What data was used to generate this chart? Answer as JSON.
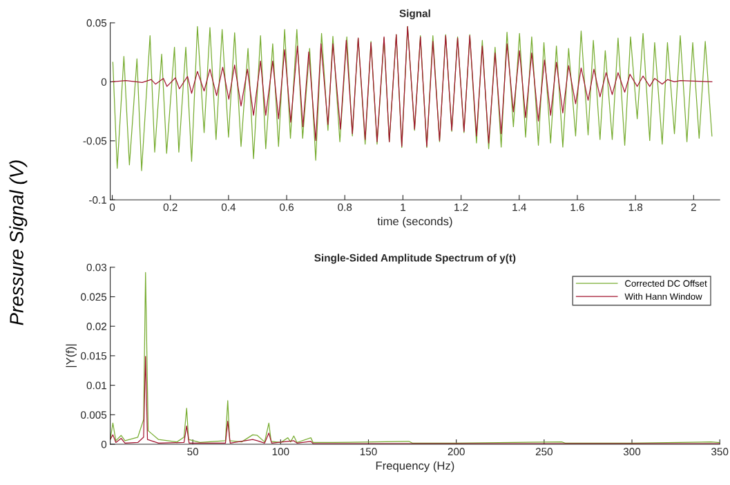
{
  "chart_data": [
    {
      "type": "line",
      "title": "Signal",
      "xlabel": "time (seconds)",
      "xlim": [
        -0.007,
        2.09
      ],
      "xticks": [
        0,
        0.2,
        0.4,
        0.6,
        0.8,
        1,
        1.2,
        1.4,
        1.6,
        1.8,
        2
      ],
      "ylim": [
        -0.1,
        0.05
      ],
      "yticks": [
        -0.1,
        -0.05,
        0,
        0.05
      ],
      "grid": false,
      "legend": false,
      "annotations": [
        "Pressure Signal (V)"
      ],
      "series": [
        {
          "color": "#77ac30",
          "x": [
            0.002,
            0.017,
            0.04,
            0.059,
            0.085,
            0.101,
            0.13,
            0.146,
            0.17,
            0.187,
            0.214,
            0.229,
            0.253,
            0.273,
            0.293,
            0.316,
            0.336,
            0.357,
            0.378,
            0.4,
            0.421,
            0.443,
            0.467,
            0.486,
            0.51,
            0.528,
            0.552,
            0.572,
            0.593,
            0.613,
            0.635,
            0.655,
            0.679,
            0.7,
            0.72,
            0.742,
            0.759,
            0.783,
            0.807,
            0.826,
            0.846,
            0.87,
            0.89,
            0.911,
            0.935,
            0.953,
            0.977,
            0.996,
            1.016,
            1.04,
            1.06,
            1.082,
            1.103,
            1.126,
            1.147,
            1.168,
            1.188,
            1.21,
            1.23,
            1.253,
            1.273,
            1.295,
            1.317,
            1.338,
            1.358,
            1.38,
            1.401,
            1.422,
            1.443,
            1.466,
            1.485,
            1.508,
            1.528,
            1.55,
            1.57,
            1.594,
            1.613,
            1.637,
            1.655,
            1.678,
            1.696,
            1.72,
            1.74,
            1.763,
            1.783,
            1.806,
            1.826,
            1.849,
            1.866,
            1.892,
            1.91,
            1.934,
            1.954,
            1.977,
            1.997,
            2.019,
            2.04,
            2.063
          ],
          "values": [
            0.0166,
            -0.0733,
            0.0215,
            -0.0704,
            0.0195,
            -0.0753,
            0.0391,
            -0.0596,
            0.0234,
            -0.0606,
            0.0293,
            -0.0596,
            0.0293,
            -0.0674,
            0.0469,
            -0.043,
            0.0459,
            -0.0489,
            0.0443,
            -0.0469,
            0.0416,
            -0.0547,
            0.0283,
            -0.0651,
            0.0391,
            -0.0567,
            0.0322,
            -0.0547,
            0.0443,
            -0.0479,
            0.0443,
            -0.0479,
            0.0283,
            -0.0665,
            0.041,
            -0.0411,
            0.0385,
            -0.0508,
            0.0381,
            -0.0459,
            0.0371,
            -0.0528,
            0.0342,
            -0.0528,
            0.0371,
            -0.0508,
            0.04,
            -0.0557,
            0.0469,
            -0.0411,
            0.0391,
            -0.0557,
            0.0391,
            -0.0508,
            0.04,
            -0.042,
            0.0381,
            -0.043,
            0.04,
            -0.0518,
            0.0351,
            -0.0567,
            0.0293,
            -0.0553,
            0.042,
            -0.0381,
            0.041,
            -0.0469,
            0.0381,
            -0.0538,
            0.0332,
            -0.0518,
            0.0303,
            -0.0553,
            0.0283,
            -0.0459,
            0.043,
            -0.045,
            0.0351,
            -0.0489,
            0.0264,
            -0.0489,
            0.0371,
            -0.0538,
            0.0381,
            -0.0313,
            0.041,
            -0.0498,
            0.0332,
            -0.0528,
            0.0332,
            -0.044,
            0.0391,
            -0.0508,
            0.0332,
            -0.0479,
            0.0342,
            -0.0459
          ]
        },
        {
          "color": "#a2142f",
          "x": [
            0.0,
            0.047,
            0.103,
            0.134,
            0.149,
            0.176,
            0.188,
            0.217,
            0.231,
            0.259,
            0.273,
            0.293,
            0.316,
            0.336,
            0.359,
            0.38,
            0.401,
            0.421,
            0.443,
            0.465,
            0.486,
            0.51,
            0.528,
            0.552,
            0.572,
            0.593,
            0.614,
            0.637,
            0.656,
            0.676,
            0.7,
            0.718,
            0.742,
            0.759,
            0.785,
            0.805,
            0.826,
            0.846,
            0.87,
            0.89,
            0.911,
            0.935,
            0.953,
            0.977,
            0.996,
            1.016,
            1.04,
            1.06,
            1.082,
            1.103,
            1.126,
            1.147,
            1.168,
            1.188,
            1.21,
            1.23,
            1.253,
            1.273,
            1.295,
            1.317,
            1.338,
            1.358,
            1.38,
            1.401,
            1.422,
            1.443,
            1.466,
            1.487,
            1.508,
            1.528,
            1.55,
            1.57,
            1.594,
            1.613,
            1.637,
            1.657,
            1.678,
            1.699,
            1.72,
            1.74,
            1.763,
            1.781,
            1.806,
            1.826,
            1.849,
            1.866,
            1.892,
            1.91,
            1.934,
            1.954,
            2.063
          ],
          "values": [
            0.0,
            0.001,
            -0.0006,
            0.0019,
            -0.002,
            0.0029,
            -0.0039,
            0.0033,
            -0.0059,
            0.0045,
            -0.0098,
            0.0088,
            -0.0078,
            0.0107,
            -0.0117,
            0.0123,
            -0.0147,
            0.0142,
            -0.0205,
            0.0107,
            -0.0284,
            0.0176,
            -0.0284,
            0.0176,
            -0.0313,
            0.0273,
            -0.0342,
            0.0303,
            -0.0381,
            0.0254,
            -0.0498,
            0.0322,
            -0.0362,
            0.0322,
            -0.0401,
            0.0351,
            -0.044,
            0.0371,
            -0.0489,
            0.0332,
            -0.0508,
            0.0381,
            -0.0508,
            0.04,
            -0.0547,
            0.0469,
            -0.0401,
            0.0381,
            -0.0547,
            0.0342,
            -0.0498,
            0.0391,
            -0.0411,
            0.0371,
            -0.042,
            0.0391,
            -0.0459,
            0.0303,
            -0.0518,
            0.0244,
            -0.044,
            0.0322,
            -0.0254,
            0.0264,
            -0.0303,
            0.0244,
            -0.0332,
            0.0185,
            -0.0284,
            0.0166,
            -0.0264,
            0.0137,
            -0.0186,
            0.0117,
            -0.0157,
            0.0107,
            -0.0127,
            0.0078,
            -0.0108,
            0.0078,
            -0.0088,
            0.0064,
            -0.0039,
            0.0049,
            -0.0039,
            0.0029,
            -0.002,
            0.0019,
            0.0,
            0.001,
            0.0
          ]
        }
      ]
    },
    {
      "type": "line",
      "title": "Single-Sided Amplitude Spectrum of y(t)",
      "xlabel": "Frequency (Hz)",
      "ylabel": "|Y(f)|",
      "xlim": [
        3,
        350
      ],
      "xticks": [
        50,
        100,
        150,
        200,
        250,
        300,
        350
      ],
      "ylim": [
        0,
        0.03
      ],
      "yticks": [
        0,
        0.005,
        0.01,
        0.015,
        0.02,
        0.025,
        0.03
      ],
      "grid": false,
      "legend": "top right",
      "series": [
        {
          "name": "Corrected DC Offset",
          "color": "#77ac30",
          "x": [
            3,
            4.5,
            6.2,
            9.2,
            11.4,
            18.7,
            22.0,
            23.1,
            24.6,
            30.5,
            41,
            45,
            46.5,
            47.6,
            54.1,
            68.6,
            69.9,
            71,
            77.8,
            84.1,
            86.7,
            90.9,
            93.3,
            94.6,
            100.1,
            104.1,
            105.7,
            107.5,
            109.3,
            117.2,
            118.5,
            130,
            173,
            175,
            200,
            260,
            262,
            300,
            345,
            350
          ],
          "values": [
            0.0008,
            0.0036,
            0.0006,
            0.0015,
            0.0006,
            0.0012,
            0.0042,
            0.0291,
            0.0023,
            0.0008,
            0.0004,
            0.0012,
            0.0061,
            0.0008,
            0.0003,
            0.0006,
            0.0074,
            0.0006,
            0.0004,
            0.0016,
            0.0015,
            0.0004,
            0.0036,
            0.0005,
            0.0003,
            0.0011,
            0.0004,
            0.0014,
            0.0003,
            0.0011,
            0.0003,
            0.0003,
            0.0005,
            0.0002,
            0.0002,
            0.0004,
            0.0002,
            0.0002,
            0.0004,
            0.0003
          ]
        },
        {
          "name": "With Hann Window",
          "color": "#a2142f",
          "x": [
            3,
            4.5,
            6.2,
            9.2,
            11.4,
            18.7,
            22.0,
            23.1,
            24.2,
            30.5,
            45,
            46.5,
            47.9,
            68.6,
            69.9,
            71.3,
            84.1,
            86.7,
            90.9,
            93.3,
            94.9,
            104.1,
            107.5,
            109.3,
            117.2,
            118.5,
            200,
            350
          ],
          "values": [
            0.0008,
            0.0016,
            0.0003,
            0.001,
            0.0002,
            0.0003,
            0.0012,
            0.0149,
            0.0008,
            0.0002,
            0.0003,
            0.0031,
            0.0002,
            0.0002,
            0.0039,
            0.0002,
            0.0008,
            0.0006,
            0.0002,
            0.0019,
            0.0002,
            0.0005,
            0.0006,
            0.0002,
            0.0005,
            0.0001,
            0.0001,
            0.0001
          ]
        }
      ]
    }
  ]
}
